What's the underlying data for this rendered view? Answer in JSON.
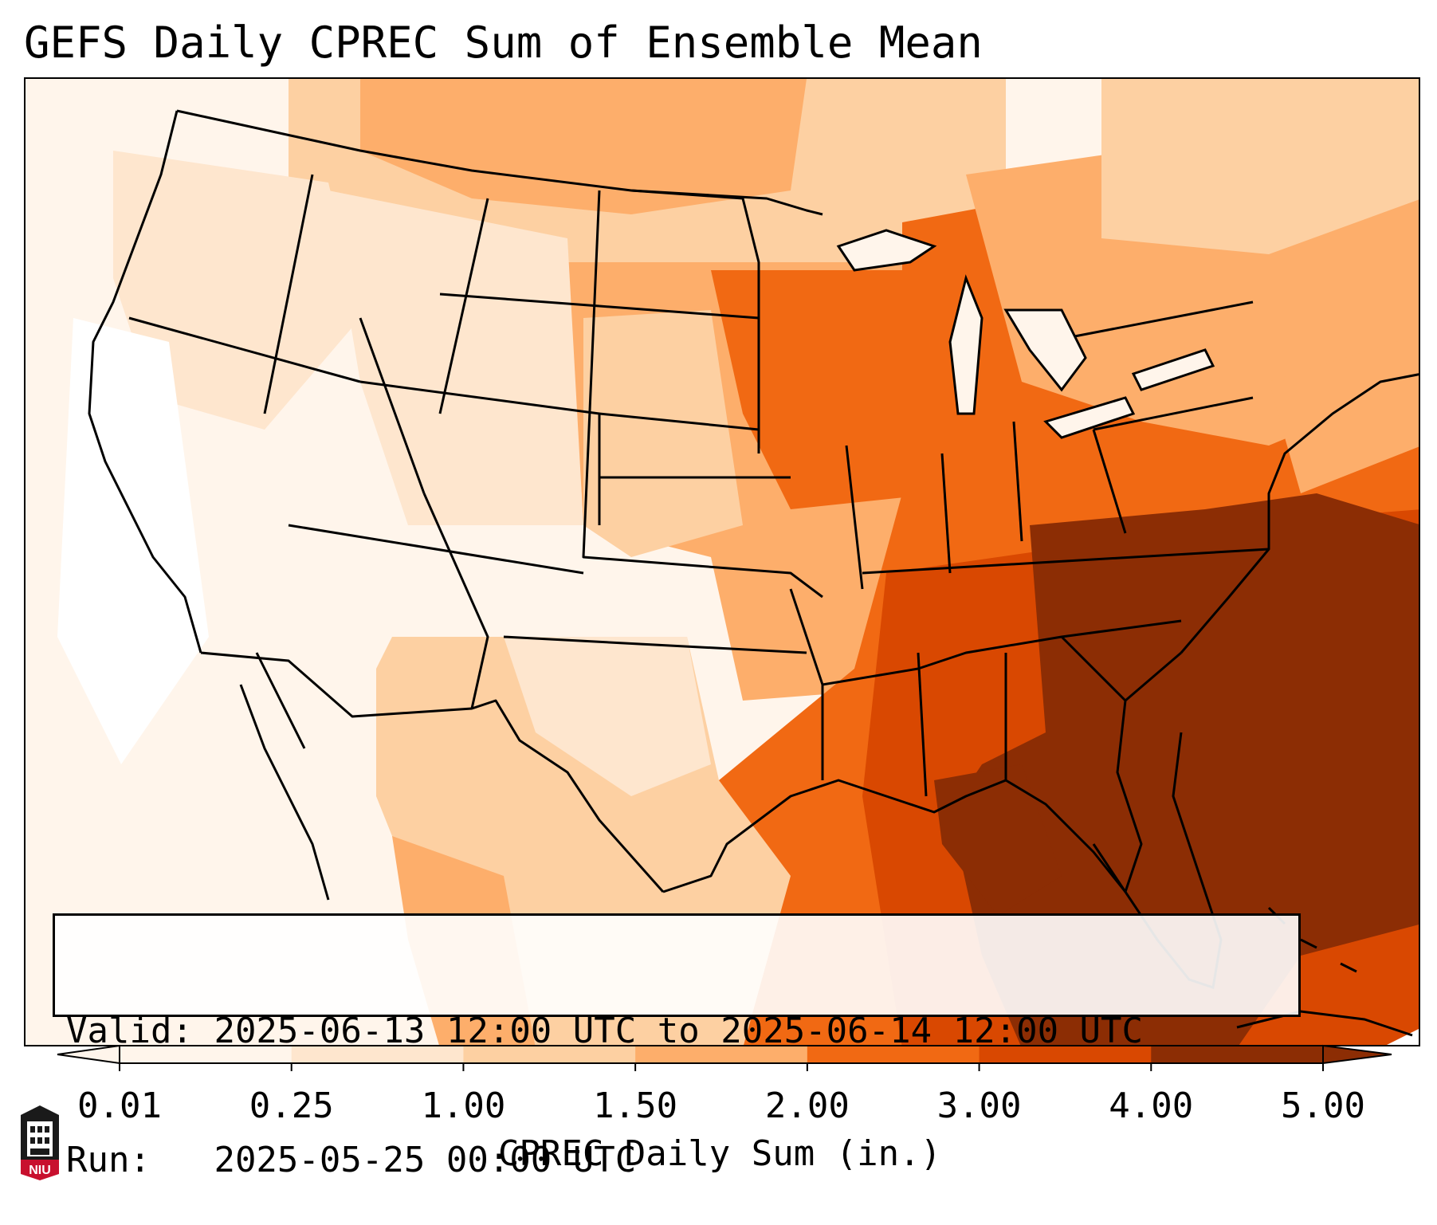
{
  "title": "GEFS Daily CPREC Sum of Ensemble Mean",
  "info": {
    "valid_label": "Valid:",
    "valid_value": "2025-06-13 12:00 UTC to 2025-06-14 12:00 UTC",
    "run_label": "Run:",
    "run_value": "2025-05-25 00:00 UTC"
  },
  "colorbar": {
    "label": "CPREC Daily Sum (in.)",
    "ticks": [
      "0.01",
      "0.25",
      "1.00",
      "1.50",
      "2.00",
      "3.00",
      "4.00",
      "5.00"
    ],
    "colors": [
      "#fff5eb",
      "#fee6ce",
      "#fdd0a2",
      "#fdae6b",
      "#f16913",
      "#d94801",
      "#8c2d04"
    ],
    "extend": "both"
  },
  "colors": {
    "background": "#fff5eb",
    "boundaries": "#000000"
  },
  "logo": {
    "text": "NIU",
    "color": "#c8102e"
  }
}
